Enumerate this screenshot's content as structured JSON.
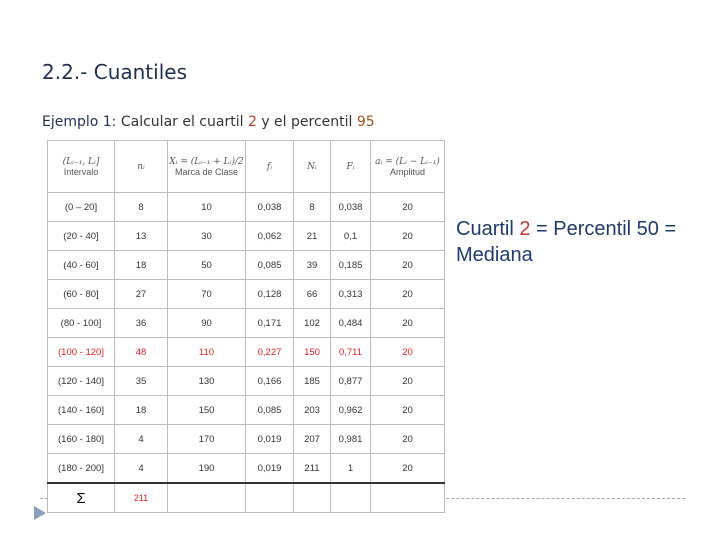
{
  "header": {
    "title": "2.2.- Cuantiles",
    "subtitle": [
      {
        "text": "Ejemplo 1:",
        "color": "#1f2f4f"
      },
      {
        "text": "Calcular el cuartil",
        "color": "#333333"
      },
      {
        "text": "2",
        "color": "#c0392b"
      },
      {
        "text": "y el percentil",
        "color": "#333333"
      },
      {
        "text": "95",
        "color": "#a0521d"
      }
    ]
  },
  "table": {
    "header": [
      {
        "formula": "(Lᵢ₋₁, Lᵢ]",
        "label": "Intervalo"
      },
      {
        "formula": "nᵢ",
        "label": ""
      },
      {
        "formula": "Xᵢ = (Lᵢ₋₁ + Lᵢ)/2",
        "label": "Marca de Clase"
      },
      {
        "formula": "fᵢ",
        "label": ""
      },
      {
        "formula": "Nᵢ",
        "label": ""
      },
      {
        "formula": "Fᵢ",
        "label": ""
      },
      {
        "formula": "aᵢ = (Lᵢ − Lᵢ₋₁)",
        "label": "Amplitud"
      }
    ],
    "rows": [
      {
        "color": "#333333",
        "cells": [
          "(0 – 20]",
          "8",
          "10",
          "0,038",
          "8",
          "0,038",
          "20"
        ]
      },
      {
        "color": "#333333",
        "cells": [
          "(20 - 40]",
          "13",
          "30",
          "0,062",
          "21",
          "0,1",
          "20"
        ]
      },
      {
        "color": "#333333",
        "cells": [
          "(40 - 60]",
          "18",
          "50",
          "0,085",
          "39",
          "0,185",
          "20"
        ]
      },
      {
        "color": "#333333",
        "cells": [
          "(60 - 80]",
          "27",
          "70",
          "0,128",
          "66",
          "0,313",
          "20"
        ]
      },
      {
        "color": "#333333",
        "cells": [
          "(80 - 100]",
          "36",
          "90",
          "0,171",
          "102",
          "0,484",
          "20"
        ]
      },
      {
        "color": "#e02020",
        "cells": [
          "(100 - 120]",
          "48",
          "110",
          "0,227",
          "150",
          "0,711",
          "20"
        ]
      },
      {
        "color": "#333333",
        "cells": [
          "(120 - 140]",
          "35",
          "130",
          "0,166",
          "185",
          "0,877",
          "20"
        ]
      },
      {
        "color": "#333333",
        "cells": [
          "(140 - 160]",
          "18",
          "150",
          "0,085",
          "203",
          "0,962",
          "20"
        ]
      },
      {
        "color": "#333333",
        "cells": [
          "(160 - 180]",
          "4",
          "170",
          "0,019",
          "207",
          "0,981",
          "20"
        ]
      },
      {
        "color": "#333333",
        "cells": [
          "(180 - 200]",
          "4",
          "190",
          "0,019",
          "211",
          "1",
          "20"
        ]
      }
    ],
    "footer": [
      "Σ",
      "211"
    ]
  },
  "note": [
    {
      "text": "Cuartil",
      "color": "#1f3b6e"
    },
    {
      "text": "2",
      "color": "#c0392b"
    },
    {
      "text": "= Percentil 50 = Mediana",
      "color": "#1f3b6e"
    }
  ]
}
